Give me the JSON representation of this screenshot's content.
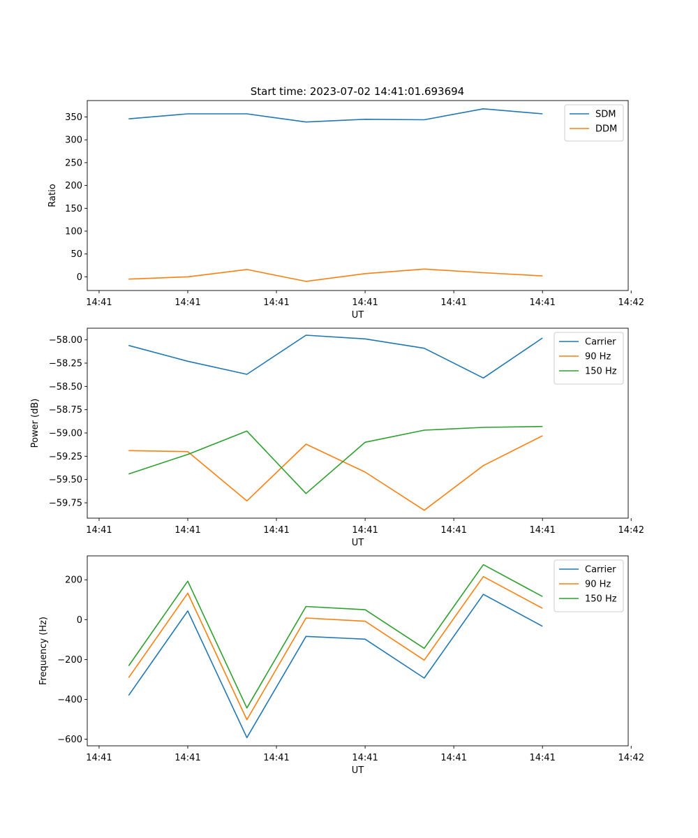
{
  "figure": {
    "title": "Start time: 2023-07-02 14:41:01.693694"
  },
  "chart_data": [
    {
      "type": "line",
      "title": "Start time: 2023-07-02 14:41:01.693694",
      "xlabel": "UT",
      "ylabel": "Ratio",
      "x_tick_labels": [
        "14:41",
        "14:41",
        "14:41",
        "14:41",
        "14:41",
        "14:41",
        "14:42"
      ],
      "x": [
        1,
        2,
        3,
        4,
        5,
        6,
        7,
        8
      ],
      "xlim": [
        0.3,
        9.45
      ],
      "x_tick_positions": [
        0.5,
        2.0,
        3.5,
        5.0,
        6.5,
        8.0,
        9.5
      ],
      "ylim": [
        -30,
        386
      ],
      "y_ticks": [
        0,
        50,
        100,
        150,
        200,
        250,
        300,
        350
      ],
      "y_tick_labels": [
        "0",
        "50",
        "100",
        "150",
        "200",
        "250",
        "300",
        "350"
      ],
      "legend": "top-right",
      "series": [
        {
          "name": "SDM",
          "color": "#1f77b4",
          "values": [
            346,
            357,
            357,
            339,
            345,
            344,
            368,
            357
          ]
        },
        {
          "name": "DDM",
          "color": "#ff7f0e",
          "values": [
            -5,
            0,
            16,
            -10,
            7,
            17,
            9,
            2
          ]
        }
      ]
    },
    {
      "type": "line",
      "xlabel": "UT",
      "ylabel": "Power (dB)",
      "x_tick_labels": [
        "14:41",
        "14:41",
        "14:41",
        "14:41",
        "14:41",
        "14:41",
        "14:42"
      ],
      "x": [
        1,
        2,
        3,
        4,
        5,
        6,
        7,
        8
      ],
      "xlim": [
        0.3,
        9.45
      ],
      "x_tick_positions": [
        0.5,
        2.0,
        3.5,
        5.0,
        6.5,
        8.0,
        9.5
      ],
      "ylim": [
        -59.915,
        -57.875
      ],
      "y_ticks": [
        -59.75,
        -59.5,
        -59.25,
        -59.0,
        -58.75,
        -58.5,
        -58.25,
        -58.0
      ],
      "y_tick_labels": [
        "−59.75",
        "−59.50",
        "−59.25",
        "−59.00",
        "−58.75",
        "−58.50",
        "−58.25",
        "−58.00"
      ],
      "legend": "top-right",
      "series": [
        {
          "name": "Carrier",
          "color": "#1f77b4",
          "values": [
            -58.06,
            -58.23,
            -58.37,
            -57.95,
            -57.99,
            -58.09,
            -58.41,
            -57.98
          ]
        },
        {
          "name": "90 Hz",
          "color": "#ff7f0e",
          "values": [
            -59.19,
            -59.2,
            -59.73,
            -59.12,
            -59.42,
            -59.83,
            -59.35,
            -59.03
          ]
        },
        {
          "name": "150 Hz",
          "color": "#2ca02c",
          "values": [
            -59.44,
            -59.23,
            -58.98,
            -59.65,
            -59.1,
            -58.97,
            -58.94,
            -58.93
          ]
        }
      ]
    },
    {
      "type": "line",
      "xlabel": "UT",
      "ylabel": "Frequency (Hz)",
      "x_tick_labels": [
        "14:41",
        "14:41",
        "14:41",
        "14:41",
        "14:41",
        "14:41",
        "14:42"
      ],
      "x": [
        1,
        2,
        3,
        4,
        5,
        6,
        7,
        8
      ],
      "xlim": [
        0.3,
        9.45
      ],
      "x_tick_positions": [
        0.5,
        2.0,
        3.5,
        5.0,
        6.5,
        8.0,
        9.5
      ],
      "ylim": [
        -633,
        320
      ],
      "y_ticks": [
        -600,
        -400,
        -200,
        0,
        200
      ],
      "y_tick_labels": [
        "−600",
        "−400",
        "−200",
        "0",
        "200"
      ],
      "legend": "top-right",
      "series": [
        {
          "name": "Carrier",
          "color": "#1f77b4",
          "values": [
            -380,
            44,
            -592,
            -84,
            -98,
            -293,
            127,
            -33
          ]
        },
        {
          "name": "90 Hz",
          "color": "#ff7f0e",
          "values": [
            -291,
            133,
            -502,
            8,
            -8,
            -203,
            216,
            57
          ]
        },
        {
          "name": "150 Hz",
          "color": "#2ca02c",
          "values": [
            -232,
            193,
            -443,
            66,
            50,
            -144,
            276,
            116
          ]
        }
      ]
    }
  ]
}
